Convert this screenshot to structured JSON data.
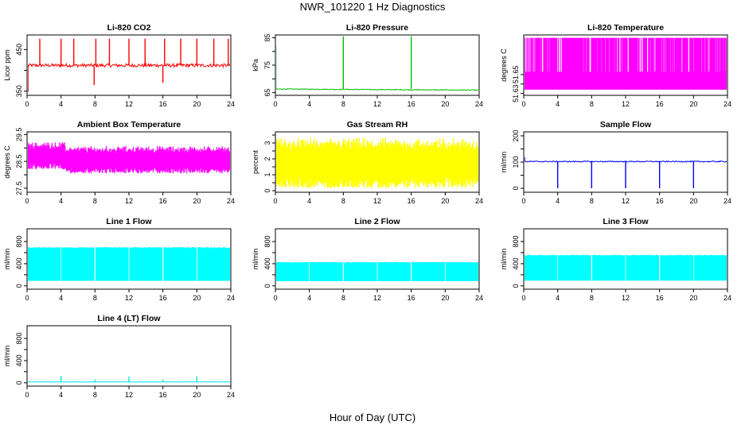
{
  "title": "NWR_101220  1 Hz Diagnostics",
  "xlabel": "Hour of Day (UTC)",
  "chart_data": [
    {
      "type": "line",
      "title": "Li-820 CO2",
      "ylabel": "Licor ppm",
      "color": "#ff0000",
      "x_ticks": [
        0,
        4,
        8,
        12,
        16,
        20,
        24
      ],
      "y_ticks": [
        350,
        450
      ],
      "y_ticks_unlabeled": [
        400
      ],
      "xlim": [
        0,
        24
      ],
      "ylim": [
        340,
        485
      ],
      "baseline": 412,
      "noise": 4,
      "spikes": [
        {
          "x": 0.1,
          "y": 348
        },
        {
          "x": 1.5,
          "y": 476
        },
        {
          "x": 4.0,
          "y": 476
        },
        {
          "x": 5.5,
          "y": 476
        },
        {
          "x": 7.9,
          "y": 365
        },
        {
          "x": 8.1,
          "y": 476
        },
        {
          "x": 9.7,
          "y": 476
        },
        {
          "x": 12.0,
          "y": 476
        },
        {
          "x": 13.9,
          "y": 476
        },
        {
          "x": 16.0,
          "y": 370
        },
        {
          "x": 16.2,
          "y": 476
        },
        {
          "x": 18.1,
          "y": 476
        },
        {
          "x": 20.0,
          "y": 476
        },
        {
          "x": 22.0,
          "y": 476
        },
        {
          "x": 23.7,
          "y": 476
        },
        {
          "x": 24.0,
          "y": 394
        }
      ]
    },
    {
      "type": "line",
      "title": "Li-820 Pressure",
      "ylabel": "kPa",
      "color": "#00bb00",
      "x_ticks": [
        0,
        4,
        8,
        12,
        16,
        20,
        24
      ],
      "y_ticks": [
        65,
        75,
        85
      ],
      "y_ticks_unlabeled": [
        70,
        80
      ],
      "xlim": [
        0,
        24
      ],
      "ylim": [
        64,
        86
      ],
      "baseline_start": 66.3,
      "baseline_end": 65.9,
      "noise": 0.15,
      "spikes": [
        {
          "x": 0.05,
          "y": 82
        },
        {
          "x": 8.0,
          "y": 85.5
        },
        {
          "x": 16.0,
          "y": 85.5
        },
        {
          "x": 24.0,
          "y": 85.5
        }
      ]
    },
    {
      "type": "area",
      "title": "Li-820 Temperature",
      "ylabel": "degrees C",
      "color": "#ff00ff",
      "x_ticks": [
        0,
        4,
        8,
        12,
        16,
        20,
        24
      ],
      "y_ticks": [
        51.63,
        51.65
      ],
      "y_ticks_unlabeled": [
        51.64
      ],
      "xlim": [
        0,
        24
      ],
      "ylim": [
        51.628,
        51.692
      ],
      "band_low": 51.634,
      "band_high": 51.689,
      "band_mid": 51.653
    },
    {
      "type": "area",
      "title": "Ambient Box Temperature",
      "ylabel": "degrees C",
      "color": "#ff00ff",
      "x_ticks": [
        0,
        4,
        8,
        12,
        16,
        20,
        24
      ],
      "y_ticks": [
        27.5,
        28.5,
        29.5
      ],
      "y_ticks_unlabeled": [
        28.0,
        29.0
      ],
      "xlim": [
        0,
        24
      ],
      "ylim": [
        27.35,
        29.6
      ],
      "center": 28.7,
      "center_late": 28.55,
      "spread": 0.45
    },
    {
      "type": "area",
      "title": "Gas Stream RH",
      "ylabel": "percent",
      "color": "#ffff00",
      "x_ticks": [
        0,
        4,
        8,
        12,
        16,
        20,
        24
      ],
      "y_ticks": [
        0.0,
        1.0,
        2.0,
        3.0
      ],
      "y_ticks_unlabeled": [
        0.5,
        1.5,
        2.5,
        3.5
      ],
      "xlim": [
        0,
        24
      ],
      "ylim": [
        -0.1,
        3.7
      ],
      "center": 1.7,
      "spread": 1.4
    },
    {
      "type": "line",
      "title": "Sample Flow",
      "ylabel": "ml/min",
      "color": "#0000ff",
      "x_ticks": [
        0,
        4,
        8,
        12,
        16,
        20,
        24
      ],
      "y_ticks": [
        0,
        100,
        200
      ],
      "y_ticks_unlabeled": [
        50,
        150
      ],
      "xlim": [
        0,
        24
      ],
      "ylim": [
        -15,
        215
      ],
      "baseline": 102,
      "noise": 2,
      "spikes": [
        {
          "x": 0.1,
          "y": 118
        },
        {
          "x": 4.0,
          "y": 0
        },
        {
          "x": 8.0,
          "y": 0
        },
        {
          "x": 12.0,
          "y": 0
        },
        {
          "x": 16.0,
          "y": 0
        },
        {
          "x": 20.0,
          "y": 0
        },
        {
          "x": 24.0,
          "y": 0
        }
      ]
    },
    {
      "type": "area",
      "title": "Line 1 Flow",
      "ylabel": "ml/min",
      "color": "#00ffff",
      "x_ticks": [
        0,
        4,
        8,
        12,
        16,
        20,
        24
      ],
      "y_ticks": [
        0,
        400,
        800
      ],
      "y_ticks_unlabeled": [
        200,
        600
      ],
      "xlim": [
        0,
        24
      ],
      "ylim": [
        -60,
        1030
      ],
      "band_low": 90,
      "band_high": 700,
      "gaps": [
        4,
        8,
        12,
        16,
        20
      ]
    },
    {
      "type": "area",
      "title": "Line 2 Flow",
      "ylabel": "ml/min",
      "color": "#00ffff",
      "x_ticks": [
        0,
        4,
        8,
        12,
        16,
        20,
        24
      ],
      "y_ticks": [
        0,
        400,
        800
      ],
      "y_ticks_unlabeled": [
        200,
        600
      ],
      "xlim": [
        0,
        24
      ],
      "ylim": [
        -60,
        1030
      ],
      "band_low": 85,
      "band_high": 430,
      "gaps": [
        4,
        8,
        12,
        16,
        20
      ]
    },
    {
      "type": "area",
      "title": "Line 3 Flow",
      "ylabel": "ml/min",
      "color": "#00ffff",
      "x_ticks": [
        0,
        4,
        8,
        12,
        16,
        20,
        24
      ],
      "y_ticks": [
        0,
        400,
        800
      ],
      "y_ticks_unlabeled": [
        200,
        600
      ],
      "xlim": [
        0,
        24
      ],
      "ylim": [
        -60,
        1030
      ],
      "band_low": 95,
      "band_high": 560,
      "gaps": [
        4,
        8,
        12,
        16,
        20
      ]
    },
    {
      "type": "line",
      "title": "Line 4 (LT) Flow",
      "ylabel": "ml/min",
      "color": "#00e5e5",
      "x_ticks": [
        0,
        4,
        8,
        12,
        16,
        20,
        24
      ],
      "y_ticks": [
        0,
        400,
        800
      ],
      "y_ticks_unlabeled": [
        200,
        600
      ],
      "xlim": [
        0,
        24
      ],
      "ylim": [
        -60,
        1030
      ],
      "baseline": 15,
      "noise": 3,
      "spikes": [
        {
          "x": 4.0,
          "y": 125
        },
        {
          "x": 8.0,
          "y": 60
        },
        {
          "x": 12.0,
          "y": 110
        },
        {
          "x": 16.0,
          "y": 55
        },
        {
          "x": 20.0,
          "y": 115
        },
        {
          "x": 24.0,
          "y": 60
        }
      ]
    }
  ]
}
